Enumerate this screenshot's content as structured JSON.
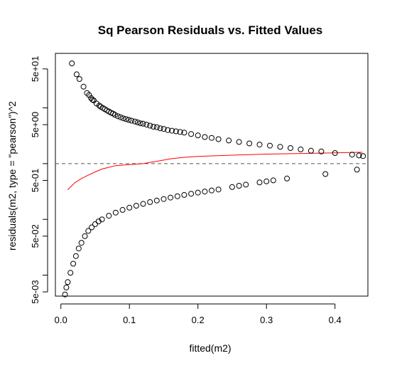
{
  "chart_data": {
    "type": "scatter",
    "title": "Sq Pearson Residuals vs. Fitted Values",
    "xlabel": "fitted(m2)",
    "ylabel": "residuals(m2, type = \"pearson\")^2",
    "xlim": [
      -0.008,
      0.448
    ],
    "ylim": [
      0.0042,
      95
    ],
    "y_scale": "log",
    "x_ticks": [
      0.0,
      0.1,
      0.2,
      0.3,
      0.4
    ],
    "x_tick_labels": [
      "0.0",
      "0.1",
      "0.2",
      "0.3",
      "0.4"
    ],
    "y_ticks": [
      0.005,
      0.05,
      0.5,
      5,
      50
    ],
    "y_tick_labels": [
      "5e-03",
      "5e-02",
      "5e-01",
      "5e+00",
      "5e+01"
    ],
    "y_minor_ticks": [
      0.01,
      0.1,
      1,
      10
    ],
    "reference_line": {
      "y": 1,
      "style": "dashed",
      "color": "#555555"
    },
    "smooth_line": {
      "color": "#ff0000",
      "points": [
        [
          0.01,
          0.34
        ],
        [
          0.02,
          0.45
        ],
        [
          0.03,
          0.54
        ],
        [
          0.04,
          0.62
        ],
        [
          0.05,
          0.71
        ],
        [
          0.06,
          0.8
        ],
        [
          0.07,
          0.86
        ],
        [
          0.08,
          0.92
        ],
        [
          0.1,
          0.96
        ],
        [
          0.12,
          1.0
        ],
        [
          0.14,
          1.1
        ],
        [
          0.16,
          1.22
        ],
        [
          0.18,
          1.3
        ],
        [
          0.2,
          1.35
        ],
        [
          0.25,
          1.42
        ],
        [
          0.3,
          1.48
        ],
        [
          0.35,
          1.52
        ],
        [
          0.4,
          1.56
        ],
        [
          0.44,
          1.6
        ]
      ]
    },
    "series": [
      {
        "points": [
          [
            0.016,
            63
          ],
          [
            0.023,
            40
          ],
          [
            0.027,
            33
          ],
          [
            0.033,
            24
          ],
          [
            0.038,
            18.5
          ],
          [
            0.041,
            17
          ],
          [
            0.044,
            15
          ],
          [
            0.046,
            14
          ],
          [
            0.048,
            13.6
          ],
          [
            0.052,
            12
          ],
          [
            0.056,
            11
          ],
          [
            0.058,
            10.5
          ],
          [
            0.061,
            10
          ],
          [
            0.064,
            9.5
          ],
          [
            0.067,
            9
          ],
          [
            0.07,
            8.6
          ],
          [
            0.073,
            8.2
          ],
          [
            0.076,
            7.9
          ],
          [
            0.079,
            7.5
          ],
          [
            0.083,
            7.1
          ],
          [
            0.087,
            6.8
          ],
          [
            0.091,
            6.5
          ],
          [
            0.095,
            6.3
          ],
          [
            0.099,
            6.1
          ],
          [
            0.103,
            5.9
          ],
          [
            0.108,
            5.7
          ],
          [
            0.112,
            5.5
          ],
          [
            0.116,
            5.3
          ],
          [
            0.12,
            5.2
          ],
          [
            0.125,
            5.0
          ],
          [
            0.13,
            4.8
          ],
          [
            0.135,
            4.6
          ],
          [
            0.14,
            4.5
          ],
          [
            0.145,
            4.3
          ],
          [
            0.15,
            4.2
          ],
          [
            0.156,
            4.0
          ],
          [
            0.162,
            3.9
          ],
          [
            0.168,
            3.8
          ],
          [
            0.174,
            3.7
          ],
          [
            0.18,
            3.6
          ],
          [
            0.19,
            3.4
          ],
          [
            0.2,
            3.2
          ],
          [
            0.21,
            3.0
          ],
          [
            0.22,
            2.9
          ],
          [
            0.23,
            2.75
          ],
          [
            0.245,
            2.6
          ],
          [
            0.26,
            2.45
          ],
          [
            0.275,
            2.3
          ],
          [
            0.29,
            2.2
          ],
          [
            0.305,
            2.1
          ],
          [
            0.32,
            2.0
          ],
          [
            0.335,
            1.9
          ],
          [
            0.35,
            1.8
          ],
          [
            0.365,
            1.7
          ],
          [
            0.38,
            1.65
          ],
          [
            0.4,
            1.55
          ],
          [
            0.425,
            1.45
          ],
          [
            0.435,
            1.4
          ],
          [
            0.441,
            1.37
          ]
        ]
      },
      {
        "points": [
          [
            0.006,
            0.0045
          ],
          [
            0.008,
            0.006
          ],
          [
            0.01,
            0.0075
          ],
          [
            0.014,
            0.011
          ],
          [
            0.018,
            0.016
          ],
          [
            0.022,
            0.022
          ],
          [
            0.026,
            0.03
          ],
          [
            0.03,
            0.038
          ],
          [
            0.035,
            0.05
          ],
          [
            0.04,
            0.062
          ],
          [
            0.045,
            0.072
          ],
          [
            0.05,
            0.082
          ],
          [
            0.055,
            0.092
          ],
          [
            0.06,
            0.1
          ],
          [
            0.07,
            0.116
          ],
          [
            0.08,
            0.132
          ],
          [
            0.09,
            0.148
          ],
          [
            0.1,
            0.162
          ],
          [
            0.11,
            0.176
          ],
          [
            0.12,
            0.19
          ],
          [
            0.13,
            0.204
          ],
          [
            0.14,
            0.218
          ],
          [
            0.15,
            0.232
          ],
          [
            0.16,
            0.246
          ],
          [
            0.17,
            0.26
          ],
          [
            0.18,
            0.274
          ],
          [
            0.19,
            0.288
          ],
          [
            0.2,
            0.302
          ],
          [
            0.21,
            0.316
          ],
          [
            0.22,
            0.33
          ],
          [
            0.23,
            0.344
          ],
          [
            0.25,
            0.38
          ],
          [
            0.26,
            0.4
          ],
          [
            0.27,
            0.42
          ],
          [
            0.29,
            0.46
          ],
          [
            0.3,
            0.48
          ],
          [
            0.31,
            0.5
          ],
          [
            0.33,
            0.54
          ],
          [
            0.386,
            0.65
          ],
          [
            0.432,
            0.78
          ]
        ]
      }
    ]
  }
}
